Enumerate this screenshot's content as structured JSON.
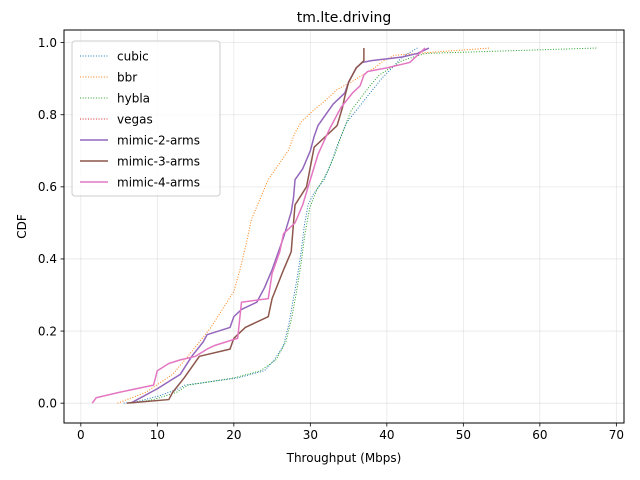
{
  "chart_data": {
    "type": "line",
    "title": "tm.lte.driving",
    "xlabel": "Throughput (Mbps)",
    "ylabel": "CDF",
    "xlim": [
      -2.2,
      71
    ],
    "ylim": [
      -0.055,
      1.035
    ],
    "xticks": [
      0,
      10,
      20,
      30,
      40,
      50,
      60,
      70
    ],
    "yticks": [
      0.0,
      0.2,
      0.4,
      0.6,
      0.8,
      1.0
    ],
    "xtick_labels": [
      "0",
      "10",
      "20",
      "30",
      "40",
      "50",
      "60",
      "70"
    ],
    "ytick_labels": [
      "0.0",
      "0.2",
      "0.4",
      "0.6",
      "0.8",
      "1.0"
    ],
    "grid": true,
    "legend_position": "top-left",
    "series": [
      {
        "name": "cubic",
        "color": "#1f77b4",
        "style": "dotted",
        "x": [
          5.6,
          7.5,
          10.2,
          12.8,
          13.6,
          20.5,
          24.0,
          25.3,
          26.5,
          27.2,
          27.7,
          28.3,
          28.8,
          29.2,
          29.7,
          30.4,
          31.8,
          32.8,
          33.6,
          34.8,
          36.3,
          37.8,
          39.3,
          40.7,
          42.0,
          44.0
        ],
        "y": [
          0.0,
          0.005,
          0.02,
          0.04,
          0.05,
          0.07,
          0.09,
          0.12,
          0.16,
          0.22,
          0.28,
          0.35,
          0.42,
          0.49,
          0.55,
          0.58,
          0.62,
          0.67,
          0.72,
          0.78,
          0.82,
          0.86,
          0.9,
          0.93,
          0.96,
          0.985
        ]
      },
      {
        "name": "bbr",
        "color": "#ff7f0e",
        "style": "dotted",
        "x": [
          4.8,
          8.5,
          12.0,
          14.0,
          15.5,
          17.0,
          18.5,
          20.0,
          20.8,
          21.6,
          22.3,
          23.3,
          24.5,
          25.8,
          27.1,
          28.0,
          28.8,
          30.3,
          32.0,
          33.5,
          35.3,
          36.8,
          38.4,
          39.6,
          41.0,
          47.0,
          53.5
        ],
        "y": [
          0.0,
          0.03,
          0.08,
          0.13,
          0.17,
          0.21,
          0.26,
          0.31,
          0.37,
          0.44,
          0.51,
          0.56,
          0.62,
          0.66,
          0.7,
          0.75,
          0.78,
          0.81,
          0.84,
          0.87,
          0.89,
          0.91,
          0.93,
          0.95,
          0.965,
          0.975,
          0.985
        ]
      },
      {
        "name": "hybla",
        "color": "#2ca02c",
        "style": "dotted",
        "x": [
          6.8,
          9.5,
          12.5,
          14.0,
          20.0,
          23.5,
          25.5,
          26.8,
          27.6,
          28.2,
          28.8,
          29.3,
          29.9,
          30.8,
          32.2,
          33.2,
          34.2,
          35.3,
          36.7,
          37.8,
          39.0,
          40.5,
          42.0,
          45.0,
          67.5
        ],
        "y": [
          0.0,
          0.01,
          0.03,
          0.05,
          0.07,
          0.09,
          0.12,
          0.17,
          0.24,
          0.31,
          0.39,
          0.47,
          0.54,
          0.59,
          0.64,
          0.69,
          0.75,
          0.81,
          0.85,
          0.88,
          0.91,
          0.93,
          0.95,
          0.97,
          0.985
        ]
      },
      {
        "name": "vegas",
        "color": "#d62728",
        "style": "dotted",
        "x": [],
        "y": []
      },
      {
        "name": "mimic-2-arms",
        "color": "#9467bd",
        "style": "solid",
        "x": [
          6.5,
          10.0,
          13.0,
          14.5,
          16.0,
          16.5,
          19.5,
          20.0,
          21.0,
          23.0,
          24.0,
          25.0,
          25.5,
          26.5,
          27.5,
          27.8,
          28.0,
          29.0,
          30.0,
          30.5,
          31.0,
          32.0,
          33.0,
          34.5,
          35.0,
          35.5,
          36.0,
          36.8,
          38.0,
          40.0,
          42.0,
          44.0,
          45.5
        ],
        "y": [
          0.0,
          0.04,
          0.08,
          0.13,
          0.17,
          0.19,
          0.21,
          0.24,
          0.26,
          0.28,
          0.32,
          0.37,
          0.4,
          0.46,
          0.53,
          0.57,
          0.62,
          0.65,
          0.7,
          0.74,
          0.77,
          0.8,
          0.83,
          0.86,
          0.89,
          0.91,
          0.93,
          0.945,
          0.95,
          0.955,
          0.96,
          0.97,
          0.985
        ]
      },
      {
        "name": "mimic-3-arms",
        "color": "#8c564b",
        "style": "solid",
        "x": [
          6.0,
          11.5,
          12.0,
          13.5,
          15.5,
          19.5,
          20.0,
          21.5,
          24.5,
          25.0,
          26.5,
          27.5,
          27.8,
          28.0,
          29.5,
          30.5,
          32.0,
          33.5,
          34.2,
          34.5,
          35.0,
          36.0,
          37.0,
          37.0
        ],
        "y": [
          0.0,
          0.01,
          0.03,
          0.07,
          0.13,
          0.15,
          0.18,
          0.21,
          0.24,
          0.29,
          0.37,
          0.42,
          0.5,
          0.55,
          0.6,
          0.71,
          0.74,
          0.77,
          0.82,
          0.85,
          0.89,
          0.93,
          0.95,
          0.985
        ]
      },
      {
        "name": "mimic-4-arms",
        "color": "#e377c2",
        "style": "solid",
        "x": [
          1.5,
          2.0,
          5.0,
          9.5,
          10.0,
          11.5,
          13.0,
          15.0,
          16.5,
          17.5,
          20.5,
          21.0,
          24.5,
          25.0,
          26.0,
          26.5,
          28.0,
          29.0,
          30.0,
          31.0,
          32.5,
          34.0,
          35.5,
          36.5,
          37.0,
          37.5,
          40.0,
          43.0,
          45.0
        ],
        "y": [
          0.0,
          0.015,
          0.03,
          0.05,
          0.09,
          0.11,
          0.12,
          0.13,
          0.15,
          0.16,
          0.18,
          0.28,
          0.29,
          0.36,
          0.42,
          0.47,
          0.5,
          0.55,
          0.62,
          0.69,
          0.76,
          0.82,
          0.86,
          0.88,
          0.91,
          0.92,
          0.93,
          0.945,
          0.985
        ]
      }
    ]
  }
}
